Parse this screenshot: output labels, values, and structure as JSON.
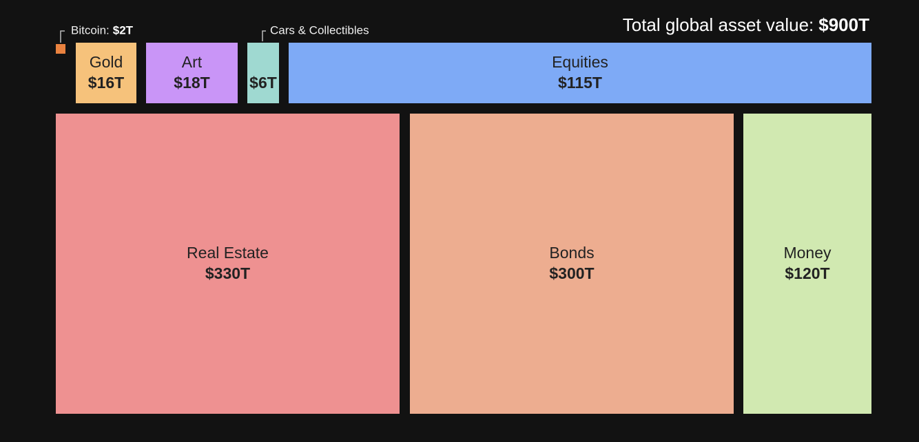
{
  "chart_data": {
    "type": "treemap",
    "title": "Total global asset value:",
    "total_label": "$900T",
    "categories": [
      "Bitcoin:",
      "Gold",
      "Art",
      "Cars & Collectibles",
      "Equities",
      "Real Estate",
      "Bonds",
      "Money"
    ],
    "values": [
      2,
      16,
      18,
      6,
      115,
      330,
      300,
      120
    ],
    "value_labels": [
      "$2T",
      "$16T",
      "$18T",
      "$6T",
      "$115T",
      "$330T",
      "$300T",
      "$120T"
    ],
    "colors": [
      "#e9823f",
      "#f6c27b",
      "#c995f7",
      "#9fd9d1",
      "#7eaaf6",
      "#ee9191",
      "#edad90",
      "#d1e9b1"
    ]
  }
}
